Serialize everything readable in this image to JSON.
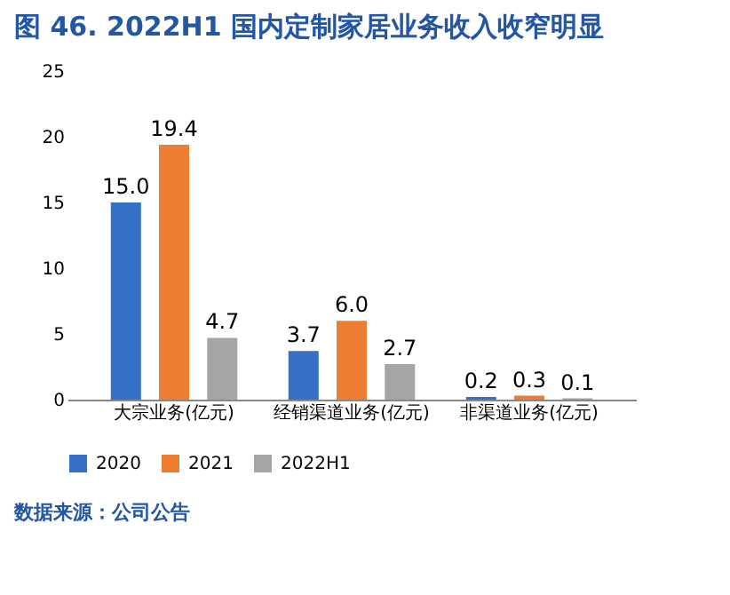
{
  "chart_data": {
    "type": "bar",
    "title": "图 46. 2022H1 国内定制家居业务收入收窄明显",
    "categories": [
      "大宗业务(亿元)",
      "经销渠道业务(亿元)",
      "非渠道业务(亿元)"
    ],
    "series": [
      {
        "name": "2020",
        "color": "#3370c6",
        "values": [
          15.0,
          3.7,
          0.2
        ],
        "value_labels": [
          "15.0",
          "3.7",
          "0.2"
        ]
      },
      {
        "name": "2021",
        "color": "#ed7d31",
        "values": [
          19.4,
          6.0,
          0.3
        ],
        "value_labels": [
          "19.4",
          "6.0",
          "0.3"
        ]
      },
      {
        "name": "2022H1",
        "color": "#a5a5a5",
        "values": [
          4.7,
          2.7,
          0.1
        ],
        "value_labels": [
          "4.7",
          "2.7",
          "0.1"
        ]
      }
    ],
    "ylim": [
      0,
      25
    ],
    "yticks": [
      0,
      5,
      10,
      15,
      20,
      25
    ],
    "grid": false,
    "legend": "bottom",
    "annotations": [
      "数据来源：公司公告"
    ]
  }
}
